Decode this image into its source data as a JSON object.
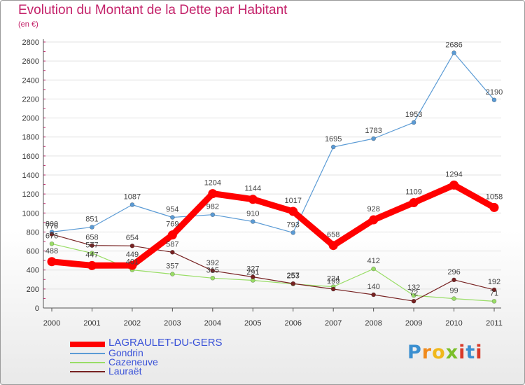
{
  "header": {
    "title": "Evolution du Montant de la Dette par Habitant",
    "subtitle": "(en €)"
  },
  "logo": {
    "text": "Proxiti",
    "letters": [
      "P",
      "r",
      "o",
      "x",
      "i",
      "t",
      "i"
    ]
  },
  "colors": {
    "title": "#c4226a",
    "grid": "#e2e2e2",
    "axis": "#555555",
    "series": [
      "#ff0000",
      "#5b9bd5",
      "#99dd66",
      "#772222"
    ],
    "legend_text": "#3a52d8"
  },
  "chart_data": {
    "type": "line",
    "title": "Evolution du Montant de la Dette par Habitant",
    "subtitle": "(en €)",
    "xlabel": "",
    "ylabel": "",
    "x": [
      "2000",
      "2001",
      "2002",
      "2003",
      "2004",
      "2005",
      "2006",
      "2007",
      "2008",
      "2009",
      "2010",
      "2011"
    ],
    "ylim": [
      0,
      2800
    ],
    "yticks": [
      "0",
      "200",
      "400",
      "600",
      "800",
      "1000",
      "1200",
      "1400",
      "1600",
      "1800",
      "2000",
      "2200",
      "2400",
      "2600",
      "2800"
    ],
    "grid": true,
    "legend_position": "bottom-left",
    "series": [
      {
        "name": "LAGRAULET-DU-GERS",
        "values": [
          488,
          447,
          449,
          769,
          1204,
          1144,
          1017,
          658,
          928,
          1109,
          1294,
          1058
        ],
        "labels": [
          "488",
          "447",
          "449",
          "769",
          "1204",
          "1144",
          "1017",
          "658",
          "928",
          "1109",
          "1294",
          "1058"
        ]
      },
      {
        "name": "Gondrin",
        "values": [
          800,
          851,
          1087,
          954,
          982,
          910,
          793,
          1695,
          1783,
          1953,
          2686,
          2190
        ],
        "labels": [
          "800",
          "851",
          "1087",
          "954",
          "982",
          "910",
          "793",
          "1695",
          "1783",
          "1953",
          "2686",
          "2190"
        ]
      },
      {
        "name": "Cazeneuve",
        "values": [
          676,
          577,
          401,
          357,
          315,
          291,
          253,
          224,
          412,
          132,
          99,
          71
        ],
        "labels": [
          "676",
          "577",
          "401",
          "357",
          "315",
          "291",
          "253",
          "224",
          "412",
          "132",
          "99",
          "71"
        ]
      },
      {
        "name": "Lauraët",
        "values": [
          776,
          658,
          654,
          587,
          392,
          327,
          257,
          199,
          140,
          72,
          296,
          192
        ],
        "labels": [
          "776",
          "658",
          "654",
          "587",
          "392",
          "327",
          "257",
          "199",
          "140",
          "72",
          "296",
          "192"
        ]
      }
    ]
  }
}
